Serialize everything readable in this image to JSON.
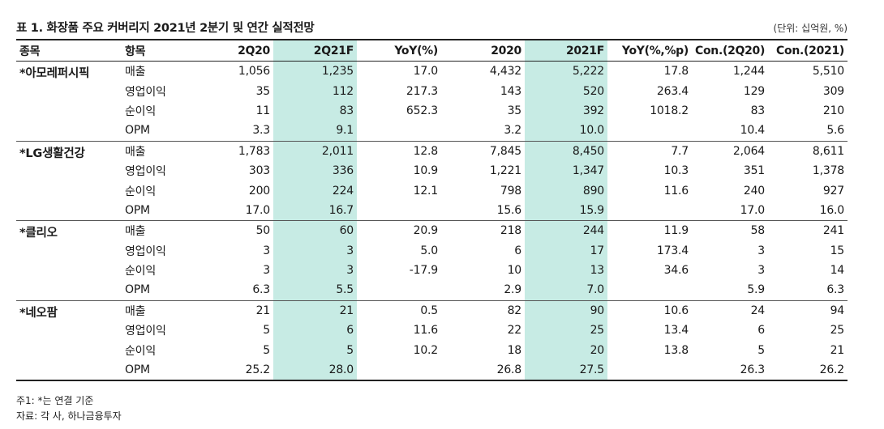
{
  "title": "표 1. 화장품 주요 커버리지 2021년 2분기 및 연간 실적전망",
  "unit": "(단위: 십억원, %)",
  "headers": [
    "종목",
    "항목",
    "2Q20",
    "2Q21F",
    "YoY(%)",
    "2020",
    "2021F",
    "YoY(%,%p)",
    "Con.(2Q20)",
    "Con.(2021)"
  ],
  "colors": {
    "highlight": "#c7ebe4",
    "rule": "#222222"
  },
  "groups": [
    {
      "name": "*아모레퍼시픽",
      "rows": [
        [
          "매출",
          "1,056",
          "1,235",
          "17.0",
          "4,432",
          "5,222",
          "17.8",
          "1,244",
          "5,510"
        ],
        [
          "영업이익",
          "35",
          "112",
          "217.3",
          "143",
          "520",
          "263.4",
          "129",
          "309"
        ],
        [
          "순이익",
          "11",
          "83",
          "652.3",
          "35",
          "392",
          "1018.2",
          "83",
          "210"
        ],
        [
          "OPM",
          "3.3",
          "9.1",
          "",
          "3.2",
          "10.0",
          "",
          "10.4",
          "5.6"
        ]
      ]
    },
    {
      "name": "*LG생활건강",
      "rows": [
        [
          "매출",
          "1,783",
          "2,011",
          "12.8",
          "7,845",
          "8,450",
          "7.7",
          "2,064",
          "8,611"
        ],
        [
          "영업이익",
          "303",
          "336",
          "10.9",
          "1,221",
          "1,347",
          "10.3",
          "351",
          "1,378"
        ],
        [
          "순이익",
          "200",
          "224",
          "12.1",
          "798",
          "890",
          "11.6",
          "240",
          "927"
        ],
        [
          "OPM",
          "17.0",
          "16.7",
          "",
          "15.6",
          "15.9",
          "",
          "17.0",
          "16.0"
        ]
      ]
    },
    {
      "name": "*클리오",
      "rows": [
        [
          "매출",
          "50",
          "60",
          "20.9",
          "218",
          "244",
          "11.9",
          "58",
          "241"
        ],
        [
          "영업이익",
          "3",
          "3",
          "5.0",
          "6",
          "17",
          "173.4",
          "3",
          "15"
        ],
        [
          "순이익",
          "3",
          "3",
          "-17.9",
          "10",
          "13",
          "34.6",
          "3",
          "14"
        ],
        [
          "OPM",
          "6.3",
          "5.5",
          "",
          "2.9",
          "7.0",
          "",
          "5.9",
          "6.3"
        ]
      ]
    },
    {
      "name": "*네오팜",
      "rows": [
        [
          "매출",
          "21",
          "21",
          "0.5",
          "82",
          "90",
          "10.6",
          "24",
          "94"
        ],
        [
          "영업이익",
          "5",
          "6",
          "11.6",
          "22",
          "25",
          "13.4",
          "6",
          "25"
        ],
        [
          "순이익",
          "5",
          "5",
          "10.2",
          "18",
          "20",
          "13.8",
          "5",
          "21"
        ],
        [
          "OPM",
          "25.2",
          "28.0",
          "",
          "26.8",
          "27.5",
          "",
          "26.3",
          "26.2"
        ]
      ]
    }
  ],
  "notes": [
    "주1: *는 연결 기준",
    "자료: 각 사, 하나금융투자"
  ]
}
